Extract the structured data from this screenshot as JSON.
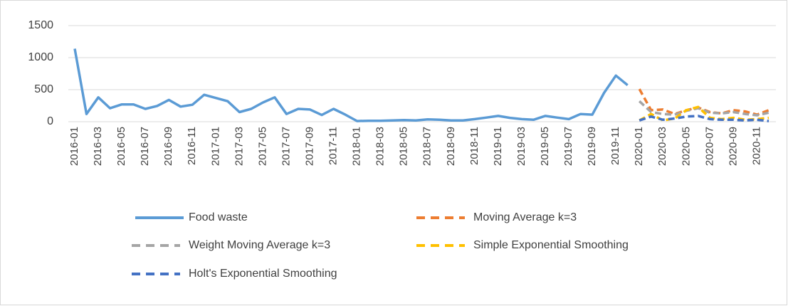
{
  "chart_data": {
    "type": "line",
    "categories": [
      "2016-01",
      null,
      "2016-03",
      null,
      "2016-05",
      null,
      "2016-07",
      null,
      "2016-09",
      null,
      "2016-11",
      null,
      "2017-01",
      null,
      "2017-03",
      null,
      "2017-05",
      null,
      "2017-07",
      null,
      "2017-09",
      null,
      "2017-11",
      null,
      "2018-01",
      null,
      "2018-03",
      null,
      "2018-05",
      null,
      "2018-07",
      null,
      "2018-09",
      null,
      "2018-11",
      null,
      "2019-01",
      null,
      "2019-03",
      null,
      "2019-05",
      null,
      "2019-07",
      null,
      "2019-09",
      null,
      "2019-11",
      null,
      "2020-01",
      null,
      "2020-03",
      null,
      "2020-05",
      null,
      "2020-07",
      null,
      "2020-09",
      null,
      "2020-11",
      null
    ],
    "series": [
      {
        "name": "Food waste",
        "color": "#5b9bd5",
        "dashed": false,
        "values": [
          1140,
          120,
          380,
          210,
          270,
          270,
          200,
          245,
          340,
          235,
          265,
          420,
          370,
          320,
          150,
          200,
          300,
          380,
          120,
          200,
          190,
          105,
          200,
          110,
          10,
          15,
          15,
          20,
          25,
          20,
          35,
          30,
          20,
          20,
          40,
          65,
          90,
          60,
          40,
          30,
          90,
          65,
          40,
          120,
          110,
          450,
          720,
          570,
          null,
          null,
          null,
          null,
          null,
          null,
          null,
          null,
          null,
          null,
          null,
          null
        ]
      },
      {
        "name": "Moving Average k=3",
        "color": "#ed7d31",
        "dashed": true,
        "values": [
          null,
          null,
          null,
          null,
          null,
          null,
          null,
          null,
          null,
          null,
          null,
          null,
          null,
          null,
          null,
          null,
          null,
          null,
          null,
          null,
          null,
          null,
          null,
          null,
          null,
          null,
          null,
          null,
          null,
          null,
          null,
          null,
          null,
          null,
          null,
          null,
          null,
          null,
          null,
          null,
          null,
          null,
          null,
          null,
          null,
          null,
          null,
          null,
          510,
          180,
          190,
          120,
          180,
          220,
          150,
          130,
          180,
          160,
          110,
          180
        ]
      },
      {
        "name": "Weight Moving Average k=3",
        "color": "#a5a5a5",
        "dashed": true,
        "values": [
          null,
          null,
          null,
          null,
          null,
          null,
          null,
          null,
          null,
          null,
          null,
          null,
          null,
          null,
          null,
          null,
          null,
          null,
          null,
          null,
          null,
          null,
          null,
          null,
          null,
          null,
          null,
          null,
          null,
          null,
          null,
          null,
          null,
          null,
          null,
          null,
          null,
          null,
          null,
          null,
          null,
          null,
          null,
          null,
          null,
          null,
          null,
          null,
          320,
          150,
          120,
          110,
          170,
          210,
          140,
          130,
          150,
          120,
          100,
          140
        ]
      },
      {
        "name": "Simple Exponential Smoothing",
        "color": "#ffc000",
        "dashed": true,
        "values": [
          null,
          null,
          null,
          null,
          null,
          null,
          null,
          null,
          null,
          null,
          null,
          null,
          null,
          null,
          null,
          null,
          null,
          null,
          null,
          null,
          null,
          null,
          null,
          null,
          null,
          null,
          null,
          null,
          null,
          null,
          null,
          null,
          null,
          null,
          null,
          null,
          null,
          null,
          null,
          null,
          null,
          null,
          null,
          null,
          null,
          null,
          null,
          null,
          20,
          120,
          20,
          50,
          180,
          230,
          60,
          40,
          60,
          30,
          40,
          60
        ]
      },
      {
        "name": "Holt's Exponential Smoothing",
        "color": "#4472c4",
        "dashed": true,
        "values": [
          null,
          null,
          null,
          null,
          null,
          null,
          null,
          null,
          null,
          null,
          null,
          null,
          null,
          null,
          null,
          null,
          null,
          null,
          null,
          null,
          null,
          null,
          null,
          null,
          null,
          null,
          null,
          null,
          null,
          null,
          null,
          null,
          null,
          null,
          null,
          null,
          null,
          null,
          null,
          null,
          null,
          null,
          null,
          null,
          null,
          null,
          null,
          null,
          20,
          80,
          30,
          50,
          80,
          90,
          40,
          30,
          30,
          20,
          30,
          10
        ]
      }
    ],
    "ylim": [
      0,
      1500
    ],
    "yticks": [
      0,
      500,
      1000,
      1500
    ],
    "grid": true,
    "legend": "bottom"
  }
}
